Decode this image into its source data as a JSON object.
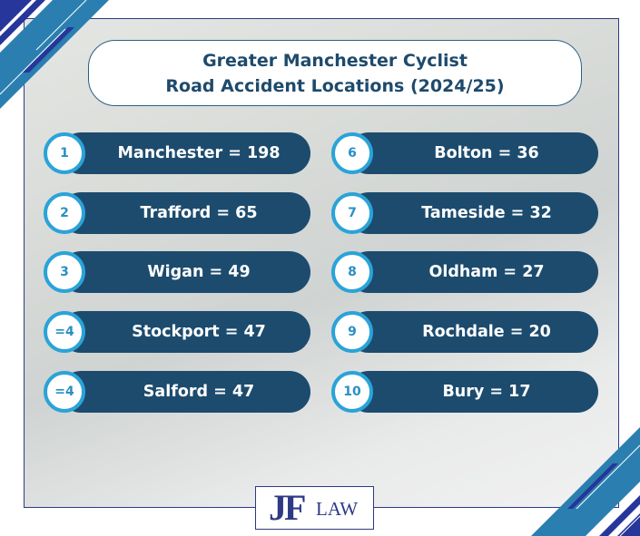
{
  "title": {
    "line1": "Greater Manchester Cyclist",
    "line2": "Road Accident Locations (2024/25)"
  },
  "colors": {
    "pill": "#1c4b6e",
    "circle_border": "#2aa3d8",
    "frame": "#2e3a84",
    "title_text": "#1e4a6c"
  },
  "left_column": [
    {
      "rank": "1",
      "label": "Manchester = 198"
    },
    {
      "rank": "2",
      "label": "Trafford = 65"
    },
    {
      "rank": "3",
      "label": "Wigan = 49"
    },
    {
      "rank": "=4",
      "label": "Stockport = 47"
    },
    {
      "rank": "=4",
      "label": "Salford = 47"
    }
  ],
  "right_column": [
    {
      "rank": "6",
      "label": "Bolton = 36"
    },
    {
      "rank": "7",
      "label": "Tameside = 32"
    },
    {
      "rank": "8",
      "label": "Oldham = 27"
    },
    {
      "rank": "9",
      "label": "Rochdale = 20"
    },
    {
      "rank": "10",
      "label": "Bury = 17"
    }
  ],
  "logo": {
    "mark": "JF",
    "text": "LAW"
  }
}
